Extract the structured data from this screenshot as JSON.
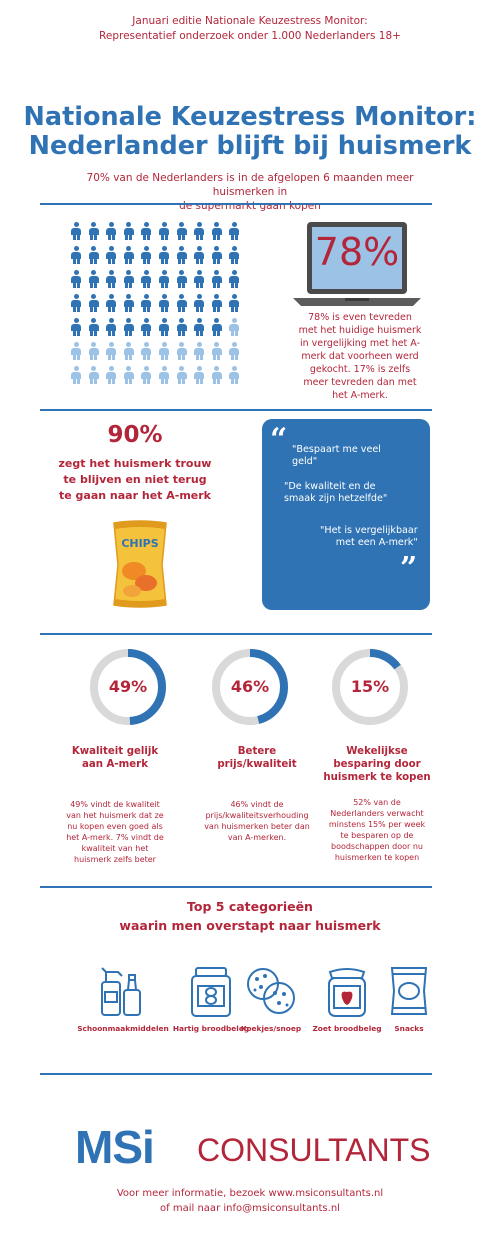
{
  "header": {
    "line1": "Januari editie Nationale Keuzestress Monitor:",
    "line2": "Representatief onderzoek onder 1.000 Nederlanders 18+",
    "title_line1": "Nationale Keuzestress Monitor:",
    "title_line2": "Nederlander blijft bij huismerk",
    "subtitle_line1": "70% van de Nederlanders is in de afgelopen 6 maanden meer huismerken in",
    "subtitle_line2": "de supermarkt gaan kopen"
  },
  "people_grid": {
    "total": 70,
    "highlighted": 49,
    "highlight_color": "#2f73b5",
    "other_color": "#9cc3e6"
  },
  "laptop_stat": {
    "value": "78%",
    "text": "78% is even tevreden met het huidige huismerk in vergelijking met het A-merk dat voorheen werd gekocht. 17% is zelfs meer tevreden dan met het A-merk."
  },
  "loyalty": {
    "value": "90%",
    "line1": "zegt het huismerk trouw",
    "line2": "te blijven en niet terug",
    "line3": "te gaan naar het A-merk",
    "chips_label": "CHIPS"
  },
  "quotes": {
    "open_mark": "“",
    "close_mark": "”",
    "q1_line1": "\"Bespaart me veel",
    "q1_line2": "geld\"",
    "q2_line1": "\"De kwaliteit en de",
    "q2_line2": "smaak zijn hetzelfde\"",
    "q3_line1": "\"Het is vergelijkbaar",
    "q3_line2": "met een A-merk\""
  },
  "stats": [
    {
      "percent": 49,
      "label": "49%",
      "head_line1": "Kwaliteit gelijk",
      "head_line2": "aan A-merk",
      "head_line3": "",
      "text_lines": [
        "49% vindt de kwaliteit",
        "van het huismerk dat ze",
        "nu kopen even goed als",
        "het A-merk. 7% vindt de",
        "kwaliteit van het",
        "huismerk zelfs beter"
      ]
    },
    {
      "percent": 46,
      "label": "46%",
      "head_line1": "Betere prijs/kwaliteit",
      "head_line2": "",
      "head_line3": "",
      "text_lines": [
        "46% vindt de",
        "prijs/kwaliteitsverhouding",
        "van huismerken beter dan",
        "van A-merken.",
        "",
        ""
      ]
    },
    {
      "percent": 15,
      "label": "15%",
      "head_line1": "Wekelijkse",
      "head_line2": "besparing door",
      "head_line3": "huismerk te kopen",
      "text_lines": [
        "52% van de",
        "Nederlanders verwacht",
        "minstens 15% per week",
        "te besparen op de",
        "boodschappen door nu",
        "huismerken te kopen"
      ]
    }
  ],
  "top5": {
    "line1": "Top 5 categorieën",
    "line2": "waarin men overstapt naar huismerk",
    "categories": [
      {
        "label": "Schoonmaakmiddelen",
        "icon": "cleaning-products-icon"
      },
      {
        "label": "Hartig broodbeleg",
        "icon": "peanut-butter-jar-icon"
      },
      {
        "label": "Koekjes/snoep",
        "icon": "cookies-icon"
      },
      {
        "label": "Zoet broodbeleg",
        "icon": "jam-jar-icon"
      },
      {
        "label": "Snacks",
        "icon": "chips-bag-icon"
      }
    ]
  },
  "brand": {
    "logo_left": "MSi",
    "logo_right": "CONSULTANTS"
  },
  "footer": {
    "line1": "Voor meer informatie, bezoek www.msiconsultants.nl",
    "line2": "of mail naar info@msiconsultants.nl"
  },
  "colors": {
    "blue": "#2f73b5",
    "red": "#b3263a",
    "light_blue": "#9cc3e6",
    "ring_grey": "#d9d9d9"
  }
}
